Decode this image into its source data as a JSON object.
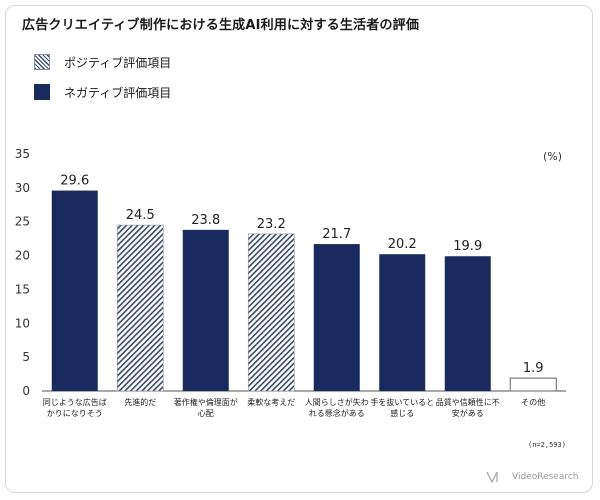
{
  "chart_data": {
    "type": "bar",
    "title": "広告クリエイティブ制作における生成AI利用に対する生活者の評価",
    "unit_label": "(%)",
    "sample_note": "(n=2,593)",
    "ylim": [
      0,
      35
    ],
    "y_ticks": [
      0,
      5,
      10,
      15,
      20,
      25,
      30,
      35
    ],
    "grid": false,
    "legend_position": "top-left",
    "legend": [
      {
        "label": "ポジティブ評価項目",
        "style": "hatched",
        "color": "#3a4a6a"
      },
      {
        "label": "ネガティブ評価項目",
        "style": "solid",
        "color": "#1b2a5e"
      }
    ],
    "categories": [
      [
        "同じような広告ば",
        "かりになりそう"
      ],
      [
        "先進的だ"
      ],
      [
        "著作権や倫理面が",
        "心配"
      ],
      [
        "柔軟な考えだ"
      ],
      [
        "人間らしさが失わ",
        "れる懸念がある"
      ],
      [
        "手を抜いていると",
        "感じる"
      ],
      [
        "品質や信頼性に不",
        "安がある"
      ],
      [
        "その他"
      ]
    ],
    "values": [
      29.6,
      24.5,
      23.8,
      23.2,
      21.7,
      20.2,
      19.9,
      1.9
    ],
    "value_labels": [
      "29.6",
      "24.5",
      "23.8",
      "23.2",
      "21.7",
      "20.2",
      "19.9",
      "1.9"
    ],
    "bar_types": [
      "negative",
      "positive",
      "negative",
      "positive",
      "negative",
      "negative",
      "negative",
      "other"
    ]
  },
  "brand": {
    "name": "VideoResearch"
  },
  "colors": {
    "negative": "#1b2a5e",
    "positive_hatch": "#3a4a6a",
    "other_border": "#666666"
  }
}
